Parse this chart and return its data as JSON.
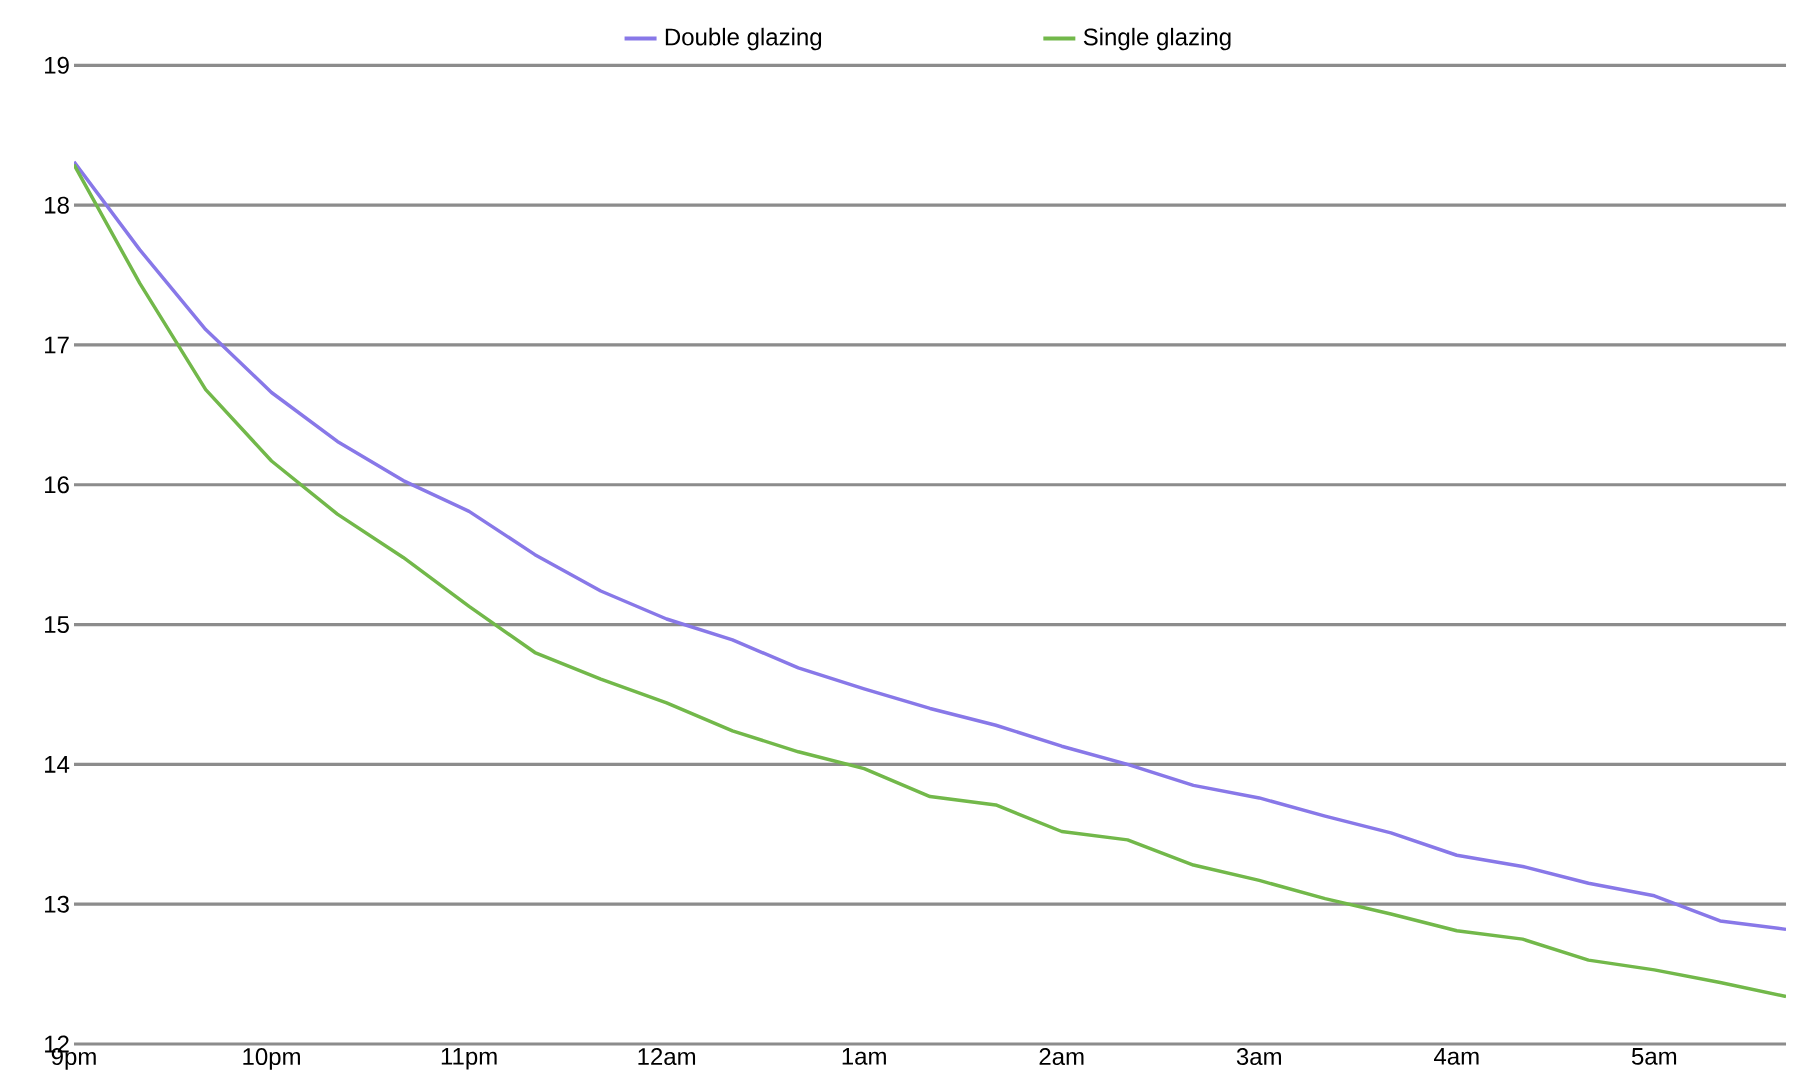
{
  "chart_data": {
    "type": "line",
    "categories": [
      "9pm",
      null,
      null,
      "10pm",
      null,
      null,
      "11pm",
      null,
      null,
      "12am",
      null,
      null,
      "1am",
      null,
      null,
      "2am",
      null,
      null,
      "3am",
      null,
      null,
      "4am",
      null,
      null,
      "5am",
      null,
      null
    ],
    "series": [
      {
        "name": "Double glazing",
        "color": "#8878e8",
        "values": [
          18.31,
          17.68,
          17.11,
          16.66,
          16.31,
          16.03,
          15.81,
          15.5,
          15.24,
          15.04,
          14.89,
          14.69,
          14.54,
          14.4,
          14.28,
          14.13,
          14.0,
          13.85,
          13.76,
          13.63,
          13.51,
          13.35,
          13.27,
          13.15,
          13.06,
          12.88,
          12.82
        ]
      },
      {
        "name": "Single glazing",
        "color": "#72b84a",
        "values": [
          18.29,
          17.44,
          16.68,
          16.17,
          15.79,
          15.48,
          15.13,
          14.8,
          14.61,
          14.44,
          14.24,
          14.09,
          13.97,
          13.77,
          13.71,
          13.52,
          13.46,
          13.28,
          13.17,
          13.04,
          12.93,
          12.81,
          12.75,
          12.6,
          12.53,
          12.44,
          12.34
        ]
      }
    ],
    "ylim": [
      12,
      19
    ],
    "yticks": [
      12,
      13,
      14,
      15,
      16,
      17,
      18,
      19
    ],
    "grid": "y",
    "legend": "top",
    "marker": "none",
    "line_style": "solid"
  }
}
